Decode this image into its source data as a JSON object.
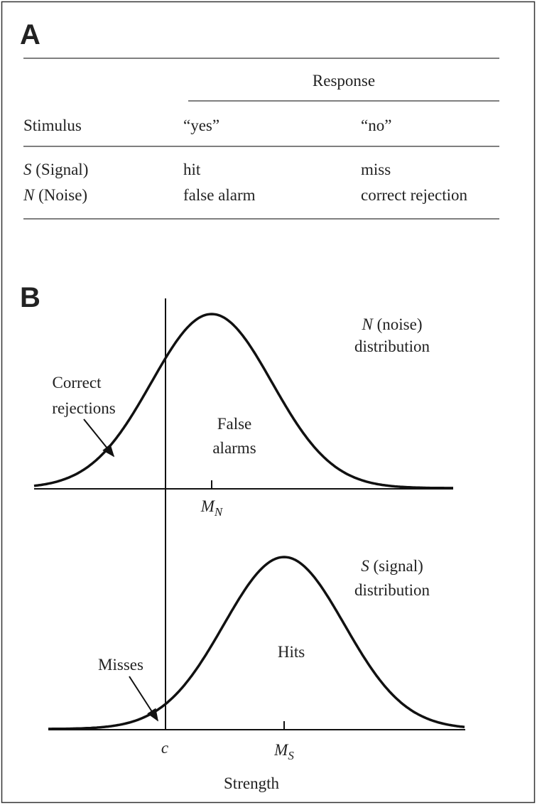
{
  "panel_a": {
    "label": "A",
    "column_group": "Response",
    "row_header": "Stimulus",
    "columns": [
      "“yes”",
      "“no”"
    ],
    "rows": [
      {
        "symbol": "S",
        "name": "(Signal)",
        "cells": [
          "hit",
          "miss"
        ]
      },
      {
        "symbol": "N",
        "name": "(Noise)",
        "cells": [
          "false alarm",
          "correct rejection"
        ]
      }
    ]
  },
  "panel_b": {
    "label": "B",
    "noise_label": {
      "symbol": "N",
      "name": "(noise)",
      "line2": "distribution"
    },
    "signal_label": {
      "symbol": "S",
      "name": "(signal)",
      "line2": "distribution"
    },
    "correct_rejections": [
      "Correct",
      "rejections"
    ],
    "false_alarms": [
      "False",
      "alarms"
    ],
    "hits": "Hits",
    "misses": "Misses",
    "noise_mean": {
      "symbol": "M",
      "subscript": "N"
    },
    "signal_mean": {
      "symbol": "M",
      "subscript": "S"
    },
    "criterion": "c",
    "axis_label": "Strength"
  }
}
